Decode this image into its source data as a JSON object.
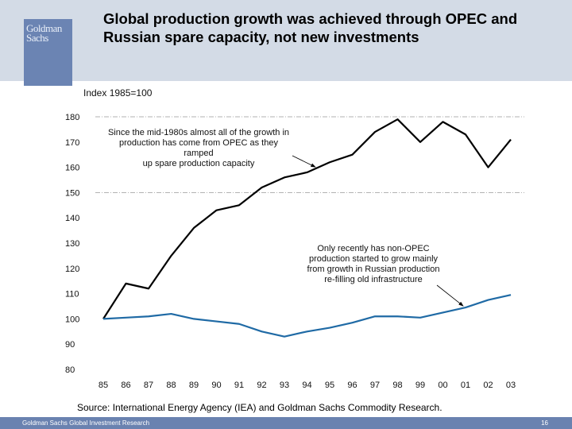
{
  "header": {
    "logo_line1": "Goldman",
    "logo_line2": "Sachs",
    "title": "Global production growth was achieved through OPEC and Russian spare capacity, not new investments"
  },
  "chart_data": {
    "type": "line",
    "title": "Global production growth was achieved through OPEC and Russian spare capacity, not new investments",
    "ylabel": "Index 1985=100",
    "xlabel": "",
    "ylim": [
      80,
      180
    ],
    "yticks": [
      80,
      90,
      100,
      110,
      120,
      130,
      140,
      150,
      160,
      170,
      180
    ],
    "ytick_labels": [
      "80",
      "90",
      "100",
      "110",
      "120",
      "130",
      "140",
      "150",
      "160",
      "170",
      "180"
    ],
    "gridlines_at": [
      180,
      150
    ],
    "x": [
      "85",
      "86",
      "87",
      "88",
      "89",
      "90",
      "91",
      "92",
      "93",
      "94",
      "95",
      "96",
      "97",
      "98",
      "99",
      "00",
      "01",
      "02",
      "03"
    ],
    "series": [
      {
        "name": "OPEC",
        "color": "#000000",
        "values": [
          100,
          114,
          112,
          125,
          136,
          143,
          145,
          152,
          156,
          158,
          162,
          165,
          174,
          179,
          170,
          178,
          173,
          160,
          171
        ]
      },
      {
        "name": "Non-OPEC",
        "color": "#1f6aa5",
        "values": [
          100,
          100.5,
          101,
          102,
          100,
          99,
          98,
          95,
          93,
          95,
          96.5,
          98.5,
          101,
          101,
          100.5,
          102.5,
          104.5,
          107.5,
          109.5
        ]
      }
    ],
    "annotations": [
      {
        "text": "Since the mid-1980s almost all of the growth in production has come from OPEC as they ramped up spare production capacity",
        "points_to": {
          "series": "OPEC",
          "x": "95"
        }
      },
      {
        "text": "Only recently has non-OPEC production started to grow mainly from growth in Russian production re-filling old infrastructure",
        "points_to": {
          "series": "Non-OPEC",
          "x": "01"
        }
      }
    ],
    "legend": "none"
  },
  "annotations": {
    "opec_lines": [
      "Since the mid-1980s almost all of the growth in",
      "production has come from OPEC as they ramped",
      "up spare production capacity"
    ],
    "nonopec_lines": [
      "Only recently has non-OPEC",
      "production started to grow mainly",
      "from growth in Russian production",
      "re-filling old infrastructure"
    ]
  },
  "source": "Source: International Energy Agency (IEA) and Goldman Sachs Commodity Research.",
  "footer": {
    "left": "Goldman Sachs Global Investment Research",
    "page": "16"
  }
}
